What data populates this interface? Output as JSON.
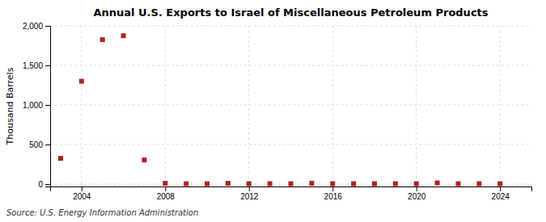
{
  "chart_data": {
    "type": "scatter",
    "title": "Annual U.S. Exports to Israel of Miscellaneous Petroleum Products",
    "ylabel": "Thousand Barrels",
    "source": "Source: U.S. Energy Information Administration",
    "x": [
      2003,
      2004,
      2005,
      2006,
      2007,
      2008,
      2009,
      2010,
      2011,
      2012,
      2013,
      2014,
      2015,
      2016,
      2017,
      2018,
      2019,
      2020,
      2021,
      2022,
      2023,
      2024
    ],
    "values": [
      325,
      1300,
      1825,
      1875,
      305,
      10,
      5,
      5,
      10,
      5,
      5,
      5,
      10,
      5,
      5,
      5,
      5,
      5,
      15,
      5,
      5,
      5
    ],
    "color": "#b22222",
    "marker": "square",
    "xlim": [
      2002.5,
      2025.5
    ],
    "ylim": [
      -30,
      2000
    ],
    "xticks": [
      2004,
      2008,
      2012,
      2016,
      2020,
      2024
    ],
    "yticks": [
      0,
      500,
      {
        "value": 1000,
        "label": "1,000"
      },
      {
        "value": 1500,
        "label": "1,500"
      },
      {
        "value": 2000,
        "label": "2,000"
      }
    ],
    "grid": true
  }
}
